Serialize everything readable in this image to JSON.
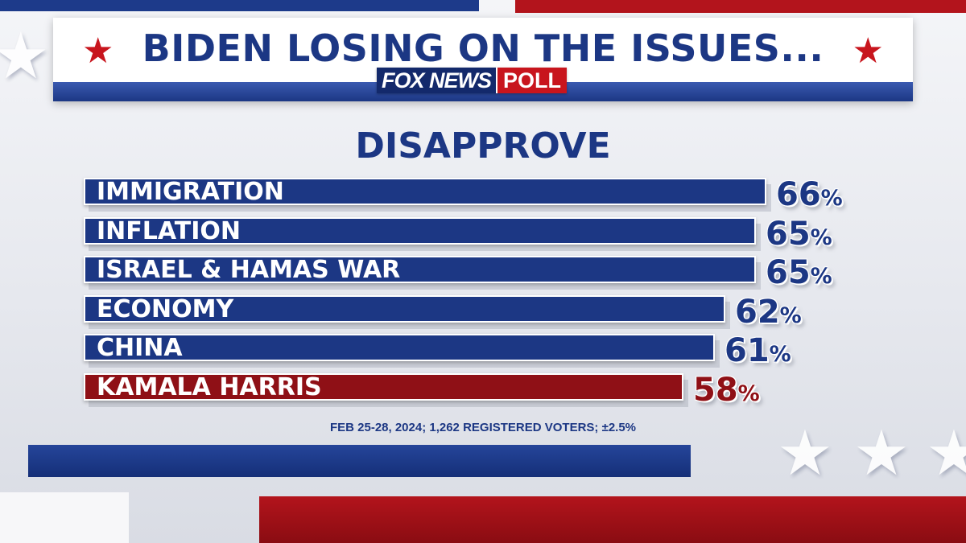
{
  "header": {
    "title": "BIDEN LOSING ON THE ISSUES...",
    "logo_brand": "FOX NEWS",
    "logo_poll": "POLL"
  },
  "colors": {
    "blue": "#1c3784",
    "red": "#8f1016",
    "star_red": "#c8151d"
  },
  "chart_data": {
    "type": "bar",
    "orientation": "horizontal",
    "title": "DISAPPROVE",
    "categories": [
      "IMMIGRATION",
      "INFLATION",
      "ISRAEL & HAMAS WAR",
      "ECONOMY",
      "CHINA",
      "KAMALA HARRIS"
    ],
    "values": [
      66,
      65,
      65,
      62,
      61,
      58
    ],
    "value_suffix": "%",
    "bar_colors": [
      "#1c3784",
      "#1c3784",
      "#1c3784",
      "#1c3784",
      "#1c3784",
      "#8f1016"
    ],
    "xlim": [
      0,
      66
    ]
  },
  "footnote": "FEB 25-28, 2024; 1,262 REGISTERED VOTERS; ±2.5%"
}
